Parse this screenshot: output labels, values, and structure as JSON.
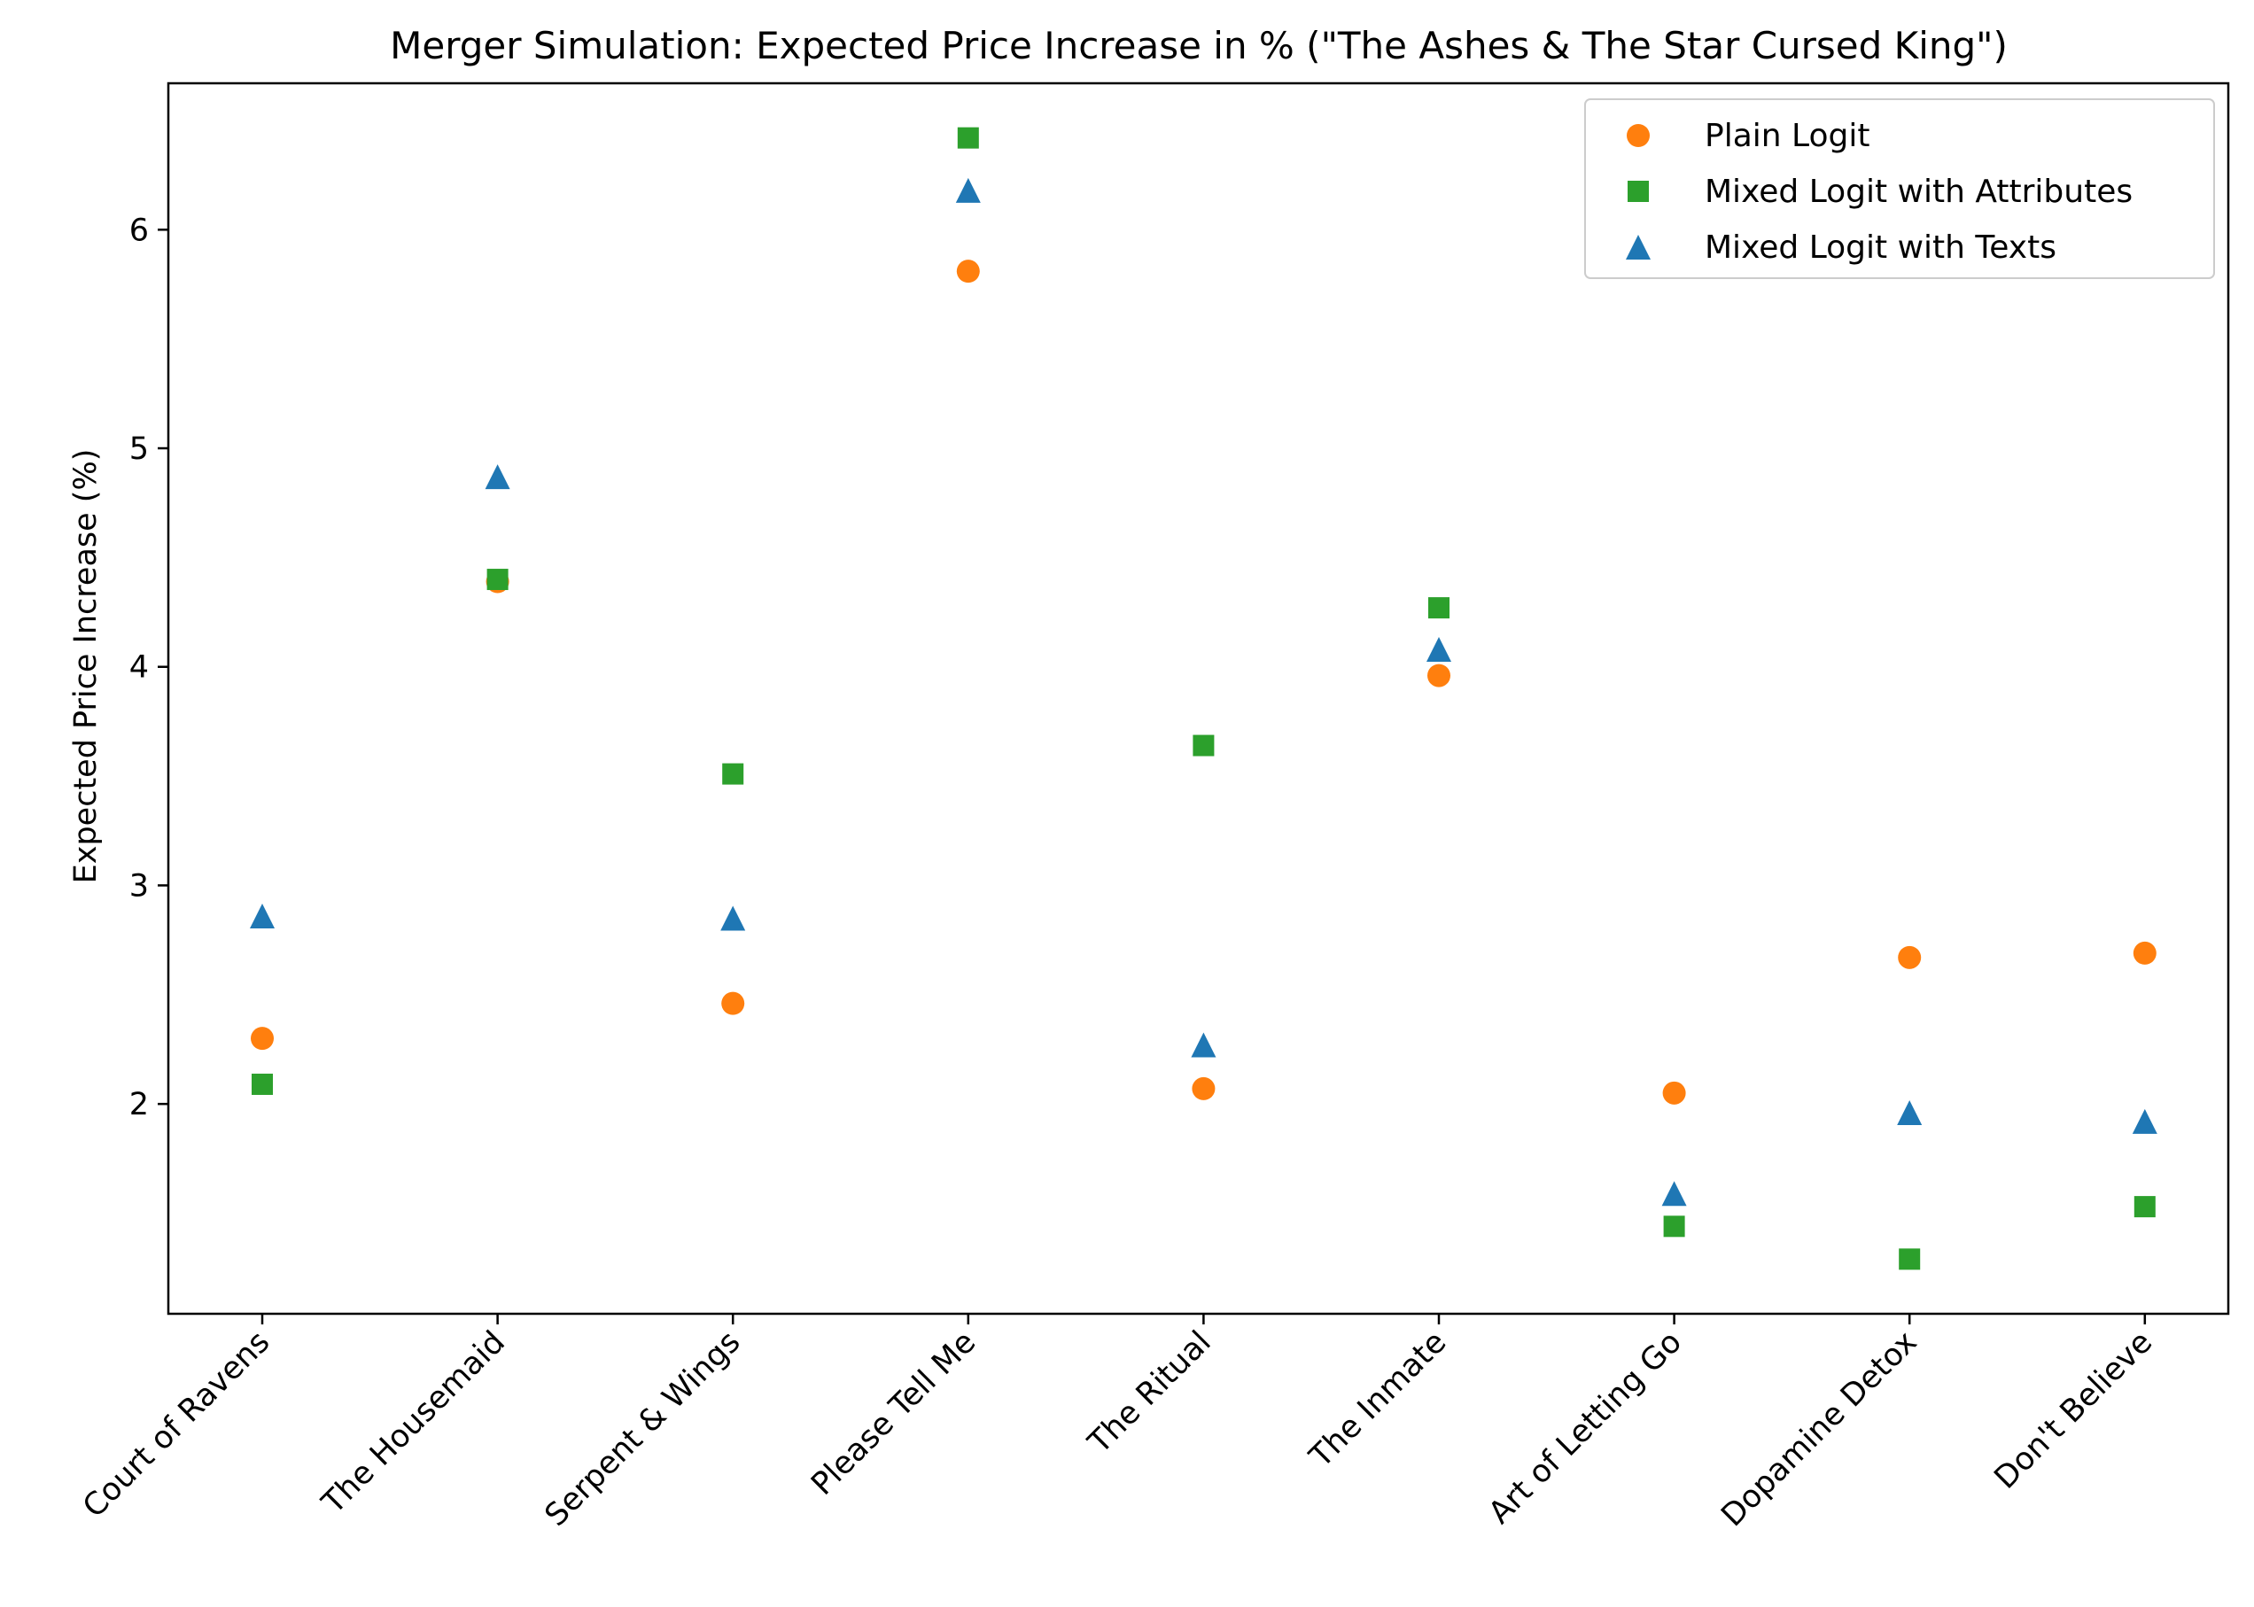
{
  "chart_data": {
    "type": "scatter",
    "title": "Merger Simulation: Expected Price Increase in % (\"The Ashes & The Star Cursed King\")",
    "xlabel": "",
    "ylabel": "Expected Price Increase (%)",
    "categories": [
      "Court of Ravens",
      "The Housemaid",
      "Serpent & Wings",
      "Please Tell Me",
      "The Ritual",
      "The Inmate",
      "Art of Letting Go",
      "Dopamine Detox",
      "Don't Believe"
    ],
    "yticks": [
      2,
      3,
      4,
      5,
      6
    ],
    "ylim": [
      1.04,
      6.67
    ],
    "grid": false,
    "legend_position": "top-right",
    "series": [
      {
        "name": "Plain Logit",
        "marker": "circle",
        "color": "#ff7f0e",
        "values": [
          2.3,
          4.39,
          2.46,
          5.81,
          2.07,
          3.96,
          2.05,
          2.67,
          2.69
        ]
      },
      {
        "name": "Mixed Logit with Attributes",
        "marker": "square",
        "color": "#2ca02c",
        "values": [
          2.09,
          4.4,
          3.51,
          6.42,
          3.64,
          4.27,
          1.44,
          1.29,
          1.53
        ]
      },
      {
        "name": "Mixed Logit with Texts",
        "marker": "triangle",
        "color": "#1f77b4",
        "values": [
          2.86,
          4.87,
          2.85,
          6.18,
          2.27,
          4.08,
          1.59,
          1.96,
          1.92
        ]
      }
    ]
  }
}
